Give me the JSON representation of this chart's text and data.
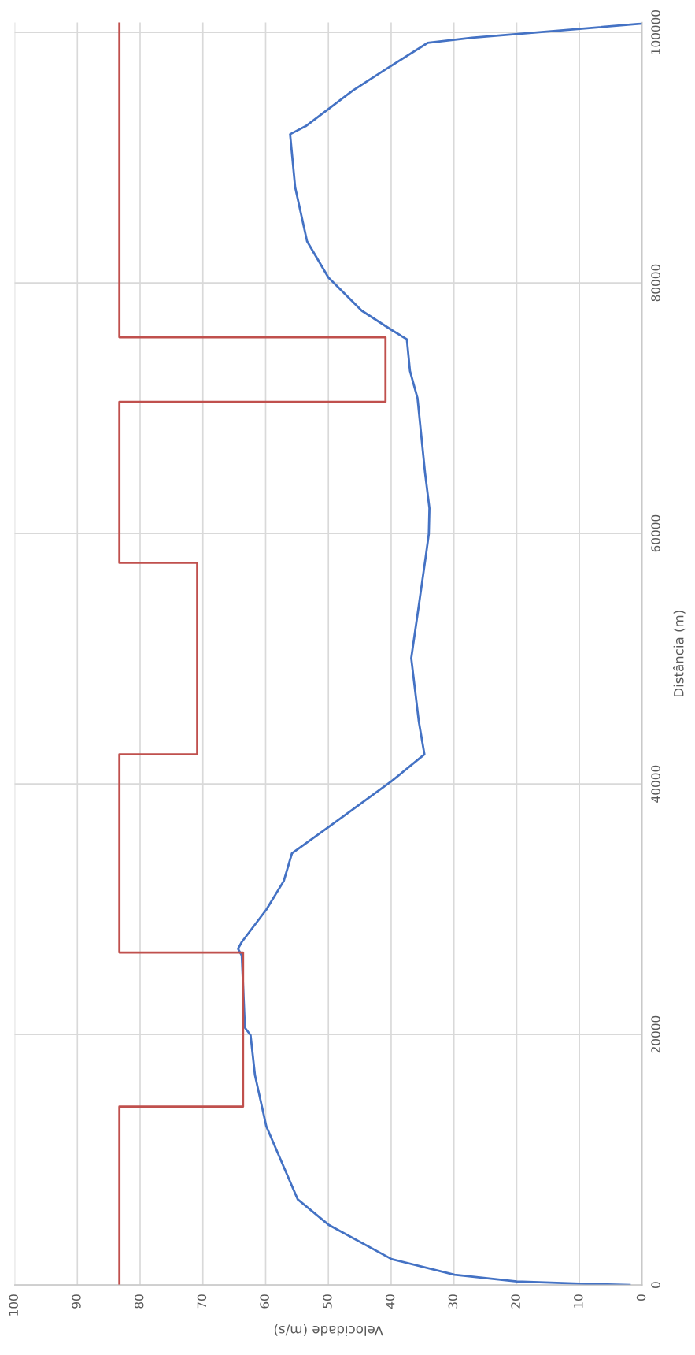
{
  "chart_data": {
    "type": "line",
    "xlabel": "Velocidade (m/s)",
    "ylabel": "Distância (m)",
    "xlim": [
      100,
      0
    ],
    "xticks": [
      0,
      10,
      20,
      30,
      40,
      50,
      60,
      70,
      80,
      90,
      100
    ],
    "ylim": [
      0,
      100800
    ],
    "yticks": [
      0,
      20000,
      40000,
      60000,
      80000,
      100000
    ],
    "grid": true,
    "legend": false,
    "marker": "none",
    "line_style": "solid",
    "series": [
      {
        "color": "#4472c4",
        "x": [
          2.0,
          10.0,
          20.0,
          29.9,
          39.9,
          49.9,
          54.9,
          59.9,
          61.7,
          62.4,
          63.3,
          63.8,
          64.4,
          63.8,
          59.9,
          57.1,
          55.8,
          49.9,
          39.9,
          34.7,
          35.6,
          36.8,
          35.6,
          34.5,
          34.0,
          33.9,
          34.6,
          35.8,
          37.0,
          37.5,
          39.9,
          44.7,
          50.0,
          53.4,
          55.3,
          56.1,
          53.6,
          46.1,
          40.9,
          34.2,
          27.1,
          0
        ],
        "values": [
          0,
          107,
          283,
          818,
          2057,
          4780,
          6840,
          12680,
          16750,
          19940,
          20540,
          26310,
          26840,
          27380,
          29960,
          32260,
          34470,
          36580,
          40230,
          42360,
          45010,
          50040,
          54220,
          58110,
          59960,
          62010,
          64840,
          70800,
          72970,
          75500,
          76230,
          77790,
          80430,
          83320,
          87650,
          91870,
          92520,
          95360,
          97040,
          99160,
          99570,
          100700
        ]
      },
      {
        "color": "#c0504d",
        "x": [
          83.3,
          83.3,
          63.6,
          63.6,
          83.3,
          83.3,
          70.9,
          70.9,
          83.3,
          83.3,
          40.9,
          40.9,
          83.3,
          83.3
        ],
        "values": [
          0,
          14240,
          14240,
          26540,
          26540,
          42360,
          42360,
          57650,
          57650,
          70500,
          70500,
          75660,
          75660,
          100800
        ]
      }
    ]
  }
}
